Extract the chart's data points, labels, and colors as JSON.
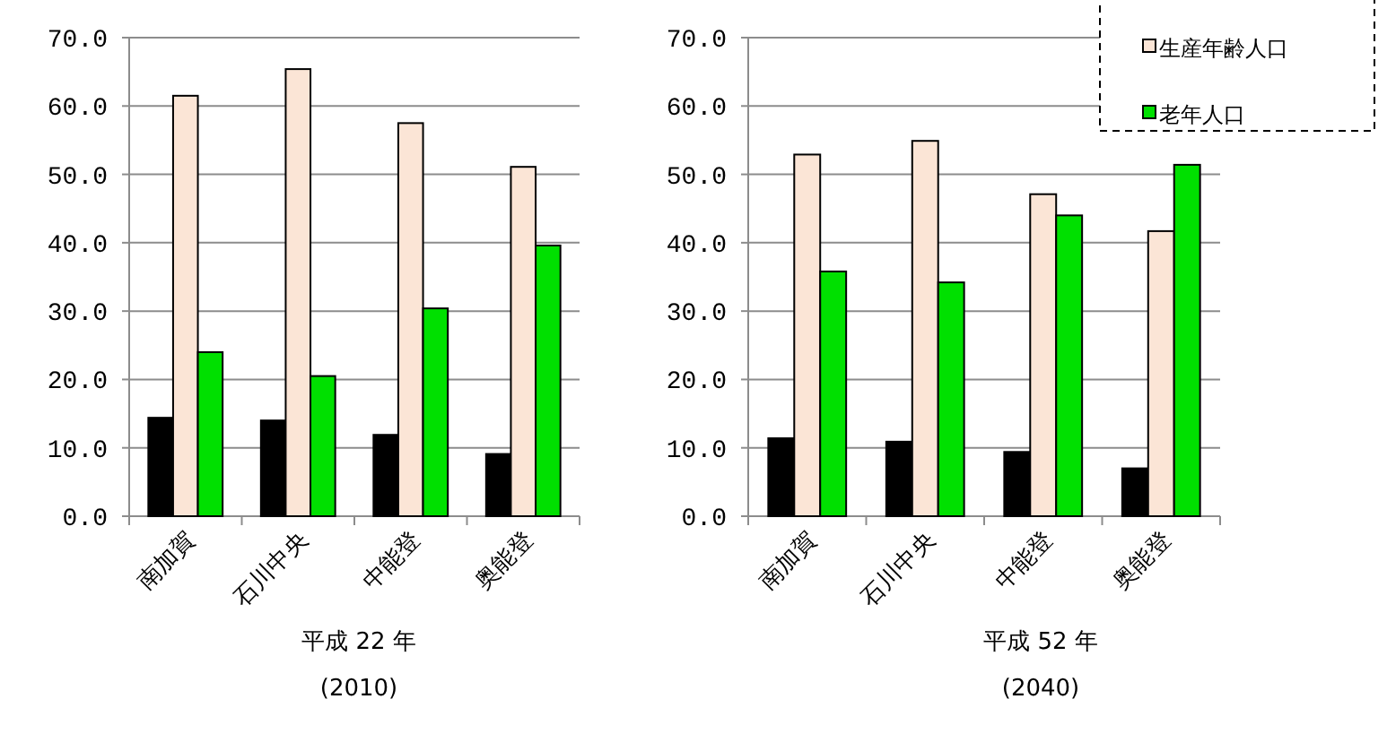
{
  "chart_data": [
    {
      "type": "bar",
      "title": "平成 22 年",
      "subtitle": "(2010)",
      "categories": [
        "南加賀",
        "石川中央",
        "中能登",
        "奥能登"
      ],
      "series": [
        {
          "color": "#000000",
          "values": [
            14.4,
            14.0,
            11.9,
            9.1
          ]
        },
        {
          "color": "#fbe5d6",
          "values": [
            61.5,
            65.4,
            57.5,
            51.1
          ]
        },
        {
          "color": "#00e000",
          "values": [
            24.0,
            20.5,
            30.4,
            39.6
          ]
        }
      ],
      "ylim": [
        0,
        70
      ],
      "yticks": [
        {
          "value": 0,
          "label": "0.0"
        },
        {
          "value": 10,
          "label": "10.0"
        },
        {
          "value": 20,
          "label": "20.0"
        },
        {
          "value": 30,
          "label": "30.0"
        },
        {
          "value": 40,
          "label": "40.0"
        },
        {
          "value": 50,
          "label": "50.0"
        },
        {
          "value": 60,
          "label": "60.0"
        },
        {
          "value": 70,
          "label": "70.0"
        }
      ],
      "grid": "y",
      "legend": false
    },
    {
      "type": "bar",
      "title": "平成 52 年",
      "subtitle": "(2040)",
      "categories": [
        "南加賀",
        "石川中央",
        "中能登",
        "奥能登"
      ],
      "series": [
        {
          "color": "#000000",
          "values": [
            11.4,
            10.9,
            9.4,
            7.0
          ]
        },
        {
          "name": "生産年齢人口",
          "color": "#fbe5d6",
          "values": [
            52.9,
            54.9,
            47.1,
            41.7
          ]
        },
        {
          "name": "老年人口",
          "color": "#00e000",
          "values": [
            35.8,
            34.2,
            44.0,
            51.4
          ]
        }
      ],
      "ylim": [
        0,
        70
      ],
      "yticks": [
        {
          "value": 0,
          "label": "0.0"
        },
        {
          "value": 10,
          "label": "10.0"
        },
        {
          "value": 20,
          "label": "20.0"
        },
        {
          "value": 30,
          "label": "30.0"
        },
        {
          "value": 40,
          "label": "40.0"
        },
        {
          "value": 50,
          "label": "50.0"
        },
        {
          "value": 60,
          "label": "60.0"
        },
        {
          "value": 70,
          "label": "70.0"
        }
      ],
      "grid": "y",
      "legend": "top right"
    }
  ]
}
